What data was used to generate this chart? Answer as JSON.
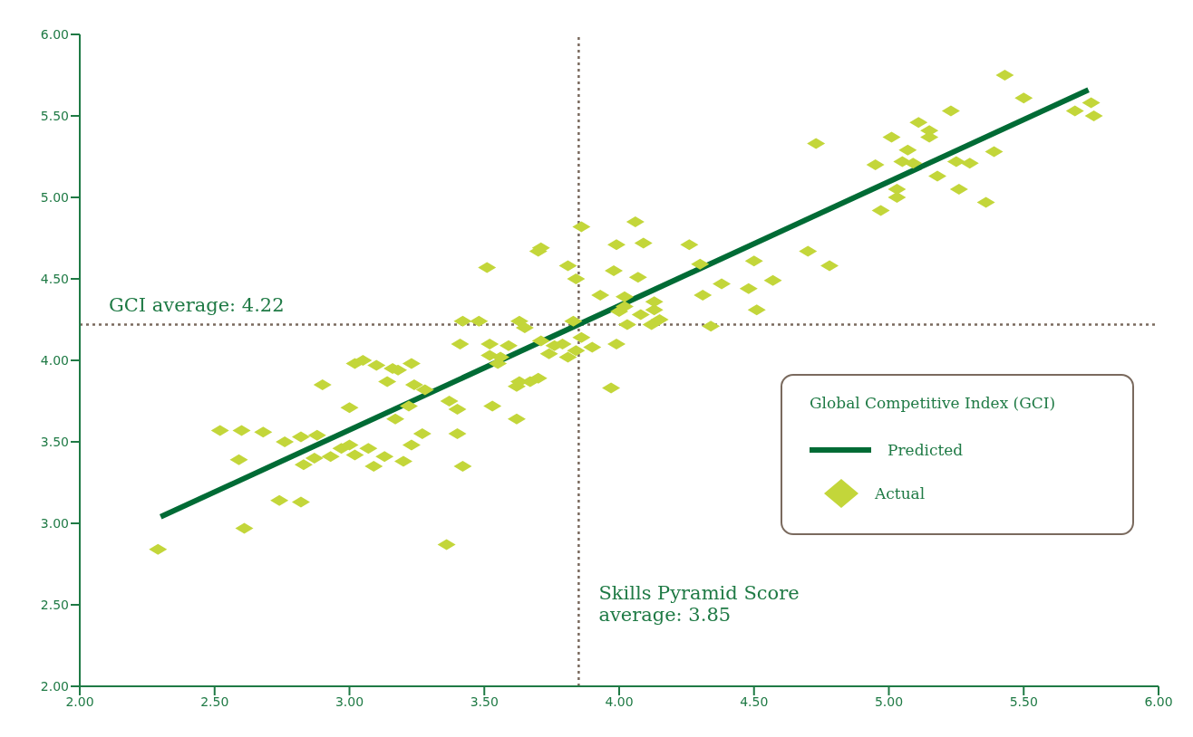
{
  "chart_data": {
    "type": "scatter",
    "legend_title": "Global Competitive Index (GCI)",
    "legend": "right",
    "marker": "diamond",
    "xlim": [
      2,
      6
    ],
    "xticks": [
      {
        "value": 2,
        "label": "2.00"
      },
      {
        "value": 2.5,
        "label": "2.50"
      },
      {
        "value": 3,
        "label": "3.00"
      },
      {
        "value": 3.5,
        "label": "3.50"
      },
      {
        "value": 4,
        "label": "4.00"
      },
      {
        "value": 4.5,
        "label": "4.50"
      },
      {
        "value": 5,
        "label": "5.00"
      },
      {
        "value": 5.5,
        "label": "5.50"
      },
      {
        "value": 6,
        "label": "6.00"
      }
    ],
    "ylim": [
      2,
      6
    ],
    "yticks": [
      {
        "value": 2,
        "label": "2.00"
      },
      {
        "value": 2.5,
        "label": "2.50"
      },
      {
        "value": 3,
        "label": "3.00"
      },
      {
        "value": 3.5,
        "label": "3.50"
      },
      {
        "value": 4,
        "label": "4.00"
      },
      {
        "value": 4.5,
        "label": "4.50"
      },
      {
        "value": 5,
        "label": "5.00"
      },
      {
        "value": 5.5,
        "label": "5.50"
      },
      {
        "value": 6,
        "label": "6.00"
      }
    ],
    "ref_lines": [
      {
        "axis": "y",
        "value": 4.22,
        "label": "GCI average: 4.22",
        "line_style": "dotted",
        "color": "#7a6a5e"
      },
      {
        "axis": "x",
        "value": 3.85,
        "label": "Skills Pyramid Score average: 3.85",
        "line_style": "dotted",
        "color": "#7a6a5e"
      }
    ],
    "series": [
      {
        "name": "Predicted",
        "type": "line",
        "color": "#006b35",
        "line_style": "solid",
        "marker": "none",
        "x": [
          2.3,
          5.74
        ],
        "values": [
          3.04,
          5.66
        ]
      },
      {
        "name": "Actual",
        "color": "#c3d63a",
        "x": [
          2.29,
          2.52,
          2.59,
          2.6,
          2.61,
          2.68,
          2.74,
          2.76,
          2.82,
          2.82,
          2.83,
          2.87,
          2.88,
          2.9,
          2.93,
          2.97,
          3.0,
          3.0,
          3.02,
          3.02,
          3.05,
          3.07,
          3.09,
          3.1,
          3.13,
          3.14,
          3.16,
          3.17,
          3.18,
          3.2,
          3.22,
          3.23,
          3.23,
          3.24,
          3.27,
          3.28,
          3.37,
          3.36,
          3.4,
          3.4,
          3.41,
          3.42,
          3.42,
          3.48,
          3.51,
          3.52,
          3.52,
          3.53,
          3.55,
          3.56,
          3.59,
          3.62,
          3.62,
          3.63,
          3.63,
          3.65,
          3.67,
          3.7,
          3.7,
          3.71,
          3.71,
          3.74,
          3.76,
          3.79,
          3.81,
          3.81,
          3.84,
          3.83,
          3.84,
          3.86,
          3.86,
          3.9,
          3.93,
          3.97,
          3.98,
          3.99,
          3.99,
          4.0,
          4.02,
          4.02,
          4.03,
          4.06,
          4.07,
          4.08,
          4.09,
          4.12,
          4.13,
          4.13,
          4.15,
          4.26,
          4.3,
          4.31,
          4.34,
          4.38,
          4.48,
          4.5,
          4.51,
          4.57,
          4.7,
          4.73,
          4.78,
          4.95,
          4.97,
          5.01,
          5.03,
          5.03,
          5.05,
          5.07,
          5.09,
          5.11,
          5.15,
          5.15,
          5.18,
          5.23,
          5.25,
          5.26,
          5.3,
          5.36,
          5.39,
          5.43,
          5.5,
          5.69,
          5.75,
          5.76
        ],
        "values": [
          2.84,
          3.57,
          3.39,
          3.57,
          2.97,
          3.56,
          3.14,
          3.5,
          3.13,
          3.53,
          3.36,
          3.4,
          3.54,
          3.85,
          3.41,
          3.46,
          3.71,
          3.48,
          3.98,
          3.42,
          4.0,
          3.46,
          3.35,
          3.97,
          3.41,
          3.87,
          3.95,
          3.64,
          3.94,
          3.38,
          3.72,
          3.48,
          3.98,
          3.85,
          3.55,
          3.82,
          3.75,
          2.87,
          3.55,
          3.7,
          4.1,
          3.35,
          4.24,
          4.24,
          4.57,
          4.1,
          4.03,
          3.72,
          3.98,
          4.02,
          4.09,
          3.84,
          3.64,
          4.24,
          3.87,
          4.2,
          3.87,
          3.89,
          4.67,
          4.69,
          4.12,
          4.04,
          4.09,
          4.1,
          4.58,
          4.02,
          4.5,
          4.24,
          4.06,
          4.14,
          4.82,
          4.08,
          4.4,
          3.83,
          4.55,
          4.1,
          4.71,
          4.3,
          4.33,
          4.39,
          4.22,
          4.85,
          4.51,
          4.28,
          4.72,
          4.22,
          4.31,
          4.36,
          4.25,
          4.71,
          4.59,
          4.4,
          4.21,
          4.47,
          4.44,
          4.61,
          4.31,
          4.49,
          4.67,
          5.33,
          4.58,
          5.2,
          4.92,
          5.37,
          5.0,
          5.05,
          5.22,
          5.29,
          5.21,
          5.46,
          5.37,
          5.41,
          5.13,
          5.53,
          5.22,
          5.05,
          5.21,
          4.97,
          5.28,
          5.75,
          5.61,
          5.53,
          5.58,
          5.5
        ]
      }
    ]
  }
}
